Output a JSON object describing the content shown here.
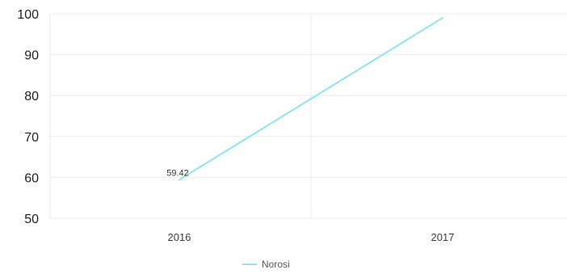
{
  "chart_data": {
    "type": "line",
    "title": "",
    "xlabel": "",
    "ylabel": "",
    "categories": [
      "2016",
      "2017"
    ],
    "y_ticks": [
      "50",
      "60",
      "70",
      "80",
      "90",
      "100"
    ],
    "ylim": [
      50,
      100
    ],
    "grid": true,
    "legend_position": "bottom",
    "series": [
      {
        "name": "Norosi",
        "color": "#8fe3ee",
        "values": [
          59.42,
          99
        ],
        "data_labels": [
          "59.42",
          ""
        ]
      }
    ]
  },
  "colors": {
    "series_line": "#8fe3ee",
    "grid": "#ececec",
    "axis_text": "#1f1f1f"
  }
}
